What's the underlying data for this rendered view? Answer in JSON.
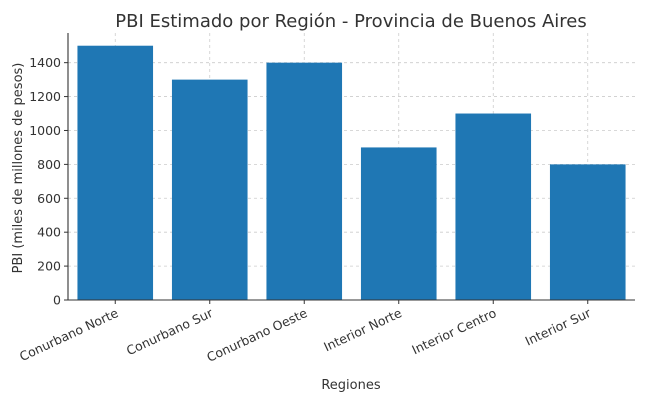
{
  "chart_data": {
    "type": "bar",
    "title": "PBI Estimado por Región - Provincia de Buenos Aires",
    "xlabel": "Regiones",
    "ylabel": "PBI (miles de millones de pesos)",
    "categories": [
      "Conurbano Norte",
      "Conurbano Sur",
      "Conurbano Oeste",
      "Interior Norte",
      "Interior Centro",
      "Interior Sur"
    ],
    "values": [
      1500,
      1300,
      1400,
      900,
      1100,
      800
    ],
    "ylim": [
      0,
      1575
    ],
    "yticks": [
      0,
      200,
      400,
      600,
      800,
      1000,
      1200,
      1400
    ],
    "grid": true,
    "bar_color": "#1f77b4"
  }
}
